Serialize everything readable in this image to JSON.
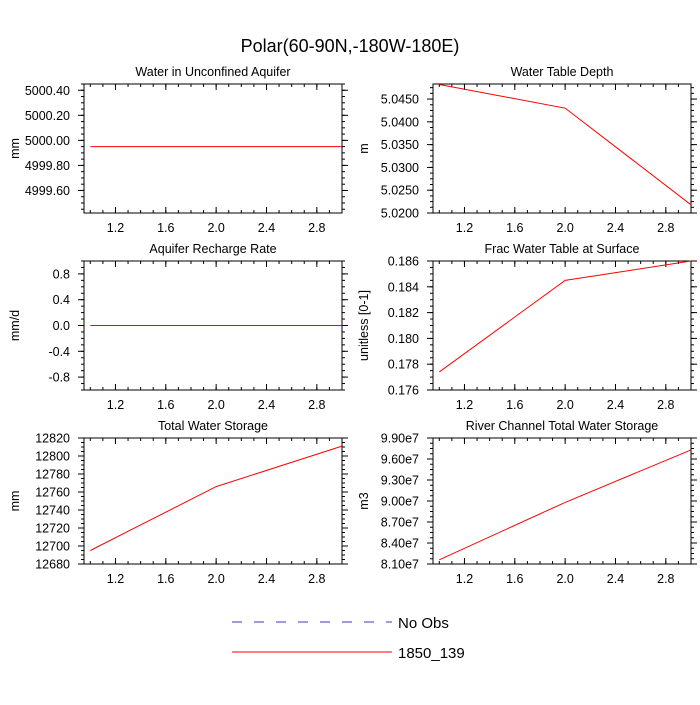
{
  "figure": {
    "title": "Polar(60-90N,-180W-180E)"
  },
  "colors": {
    "series": "#ff0000",
    "obs": "#3b3bb4",
    "axis": "#000000"
  },
  "legend": {
    "items": [
      {
        "label": "No Obs",
        "style": "dashed"
      },
      {
        "label": "1850_139",
        "style": "solid"
      }
    ]
  },
  "chart_data": [
    {
      "type": "line",
      "title": "Water in Unconfined Aquifer",
      "ylabel": "mm",
      "xlabel": "",
      "xlim": [
        0.95,
        3.0
      ],
      "ylim": [
        4999.42,
        5000.45
      ],
      "xticks": [
        1.2,
        1.6,
        2.0,
        2.4,
        2.8
      ],
      "xtick_labels": [
        "1.2",
        "1.6",
        "2.0",
        "2.4",
        "2.8"
      ],
      "yticks": [
        4999.6,
        4999.8,
        5000.0,
        5000.2,
        5000.4
      ],
      "ytick_labels": [
        "4999.60",
        "4999.80",
        "5000.00",
        "5000.20",
        "5000.40"
      ],
      "series": [
        {
          "name": "1850_139",
          "x": [
            1.0,
            2.0,
            3.0
          ],
          "values": [
            4999.95,
            4999.95,
            4999.95
          ]
        }
      ]
    },
    {
      "type": "line",
      "title": "Water Table Depth",
      "ylabel": "m",
      "xlabel": "",
      "xlim": [
        0.95,
        3.0
      ],
      "ylim": [
        5.02,
        5.0483
      ],
      "xticks": [
        1.2,
        1.6,
        2.0,
        2.4,
        2.8
      ],
      "xtick_labels": [
        "1.2",
        "1.6",
        "2.0",
        "2.4",
        "2.8"
      ],
      "yticks": [
        5.02,
        5.025,
        5.03,
        5.035,
        5.04,
        5.045
      ],
      "ytick_labels": [
        "5.0200",
        "5.0250",
        "5.0300",
        "5.0350",
        "5.0400",
        "5.0450"
      ],
      "series": [
        {
          "name": "1850_139",
          "x": [
            1.0,
            2.0,
            3.0
          ],
          "values": [
            5.0482,
            5.043,
            5.0218
          ]
        }
      ]
    },
    {
      "type": "line",
      "title": "Aquifer Recharge Rate",
      "ylabel": "mm/d",
      "xlabel": "",
      "xlim": [
        0.95,
        3.0
      ],
      "ylim": [
        -1.0,
        1.0
      ],
      "xticks": [
        1.2,
        1.6,
        2.0,
        2.4,
        2.8
      ],
      "xtick_labels": [
        "1.2",
        "1.6",
        "2.0",
        "2.4",
        "2.8"
      ],
      "yticks": [
        -0.8,
        -0.4,
        0.0,
        0.4,
        0.8
      ],
      "ytick_labels": [
        "-0.8",
        "-0.4",
        "0.0",
        "0.4",
        "0.8"
      ],
      "series": [
        {
          "name": "1850_139",
          "x": [
            1.0,
            2.0,
            3.0
          ],
          "values": [
            0.0,
            0.0,
            0.0
          ]
        }
      ]
    },
    {
      "type": "line",
      "title": "Frac Water Table at Surface",
      "ylabel": "unitless [0-1]",
      "xlabel": "",
      "xlim": [
        0.95,
        3.0
      ],
      "ylim": [
        0.176,
        0.186
      ],
      "xticks": [
        1.2,
        1.6,
        2.0,
        2.4,
        2.8
      ],
      "xtick_labels": [
        "1.2",
        "1.6",
        "2.0",
        "2.4",
        "2.8"
      ],
      "yticks": [
        0.176,
        0.178,
        0.18,
        0.182,
        0.184,
        0.186
      ],
      "ytick_labels": [
        "0.176",
        "0.178",
        "0.180",
        "0.182",
        "0.184",
        "0.186"
      ],
      "series": [
        {
          "name": "1850_139",
          "x": [
            1.0,
            2.0,
            3.0
          ],
          "values": [
            0.1774,
            0.1845,
            0.186
          ]
        }
      ]
    },
    {
      "type": "line",
      "title": "Total Water Storage",
      "ylabel": "mm",
      "xlabel": "",
      "xlim": [
        0.95,
        3.0
      ],
      "ylim": [
        12680,
        12820
      ],
      "xticks": [
        1.2,
        1.6,
        2.0,
        2.4,
        2.8
      ],
      "xtick_labels": [
        "1.2",
        "1.6",
        "2.0",
        "2.4",
        "2.8"
      ],
      "yticks": [
        12680,
        12700,
        12720,
        12740,
        12760,
        12780,
        12800,
        12820
      ],
      "ytick_labels": [
        "12680",
        "12700",
        "12720",
        "12740",
        "12760",
        "12780",
        "12800",
        "12820"
      ],
      "series": [
        {
          "name": "1850_139",
          "x": [
            1.0,
            2.0,
            3.0
          ],
          "values": [
            12695,
            12766,
            12811
          ]
        }
      ]
    },
    {
      "type": "line",
      "title": "River Channel Total Water Storage",
      "ylabel": "m3",
      "xlabel": "",
      "xlim": [
        0.95,
        3.0
      ],
      "ylim": [
        81000000,
        99000000
      ],
      "xticks": [
        1.2,
        1.6,
        2.0,
        2.4,
        2.8
      ],
      "xtick_labels": [
        "1.2",
        "1.6",
        "2.0",
        "2.4",
        "2.8"
      ],
      "yticks": [
        81000000,
        84000000,
        87000000,
        90000000,
        93000000,
        96000000,
        99000000
      ],
      "ytick_labels": [
        "8.10e7",
        "8.40e7",
        "8.70e7",
        "9.00e7",
        "9.30e7",
        "9.60e7",
        "9.90e7"
      ],
      "series": [
        {
          "name": "1850_139",
          "x": [
            1.0,
            2.0,
            3.0
          ],
          "values": [
            81600000,
            89800000,
            97300000
          ]
        }
      ]
    }
  ]
}
